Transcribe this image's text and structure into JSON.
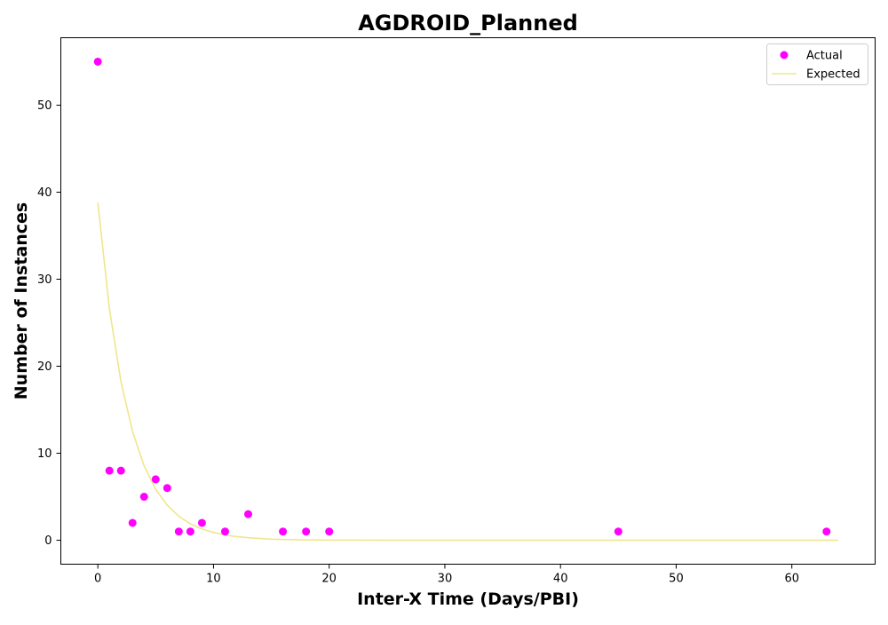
{
  "chart_data": {
    "type": "scatter",
    "title": "AGDROID_Planned",
    "xlabel": "Inter-X Time (Days/PBI)",
    "ylabel": "Number of Instances",
    "xlim": [
      -3.2,
      67.2
    ],
    "ylim": [
      -2.75,
      57.75
    ],
    "xticks": [
      0,
      10,
      20,
      30,
      40,
      50,
      60
    ],
    "yticks": [
      0,
      10,
      20,
      30,
      40,
      50
    ],
    "grid": false,
    "legend_position": "top-right",
    "series": [
      {
        "name": "Actual",
        "kind": "scatter",
        "color": "#ff00ff",
        "x": [
          0,
          1,
          2,
          3,
          4,
          5,
          6,
          7,
          8,
          9,
          11,
          13,
          16,
          18,
          20,
          45,
          63
        ],
        "y": [
          55,
          8,
          8,
          2,
          5,
          7,
          6,
          1,
          1,
          2,
          1,
          3,
          1,
          1,
          1,
          1,
          1
        ]
      },
      {
        "name": "Expected",
        "kind": "line",
        "color": "#f0e68c",
        "x": [
          0,
          1,
          2,
          3,
          4,
          5,
          6,
          7,
          8,
          9,
          10,
          11,
          12,
          13,
          14,
          15,
          16,
          18,
          20,
          22,
          25,
          30,
          40,
          50,
          64
        ],
        "y": [
          38.8,
          26.6,
          18.2,
          12.5,
          8.55,
          5.86,
          4.02,
          2.76,
          1.89,
          1.29,
          0.89,
          0.61,
          0.42,
          0.29,
          0.2,
          0.13,
          0.09,
          0.04,
          0.02,
          0.01,
          0,
          0,
          0,
          0,
          0
        ]
      }
    ]
  }
}
